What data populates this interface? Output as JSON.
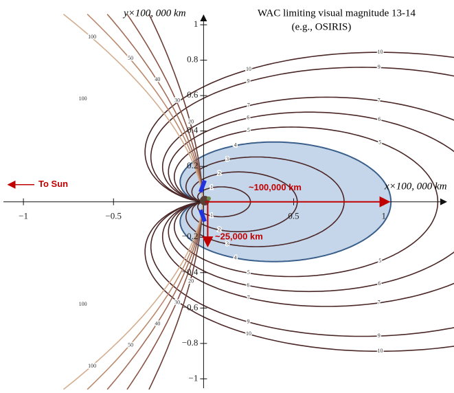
{
  "chart_data": {
    "type": "contour",
    "title": "WAC limiting visual magnitude 13-14",
    "subtitle": "(e.g., OSIRIS)",
    "x_label": "x×100, 000 km",
    "y_label": "y×100, 000 km",
    "xlim": [
      -1.13,
      1.39
    ],
    "ylim": [
      -1.08,
      1.14
    ],
    "xticks": [
      {
        "value": -1,
        "label": "−1"
      },
      {
        "value": -0.5,
        "label": "−0.5"
      },
      0.5,
      1
    ],
    "yticks": [
      {
        "value": -1,
        "label": "−1"
      },
      {
        "value": -0.8,
        "label": "−0.8"
      },
      {
        "value": -0.6,
        "label": "−0.6"
      },
      {
        "value": -0.4,
        "label": "−0.4"
      },
      {
        "value": -0.2,
        "label": "−0.2"
      },
      0.2,
      0.4,
      0.6,
      0.8,
      1
    ],
    "levels": [
      1,
      2,
      3,
      4,
      5,
      6,
      7,
      9,
      10,
      20,
      30,
      40,
      50,
      100
    ],
    "shaded_level": 4,
    "shade_color": "#c6d6ea",
    "annotations": [
      "To Sun",
      "~100,000 km",
      "~25,000 km"
    ]
  }
}
